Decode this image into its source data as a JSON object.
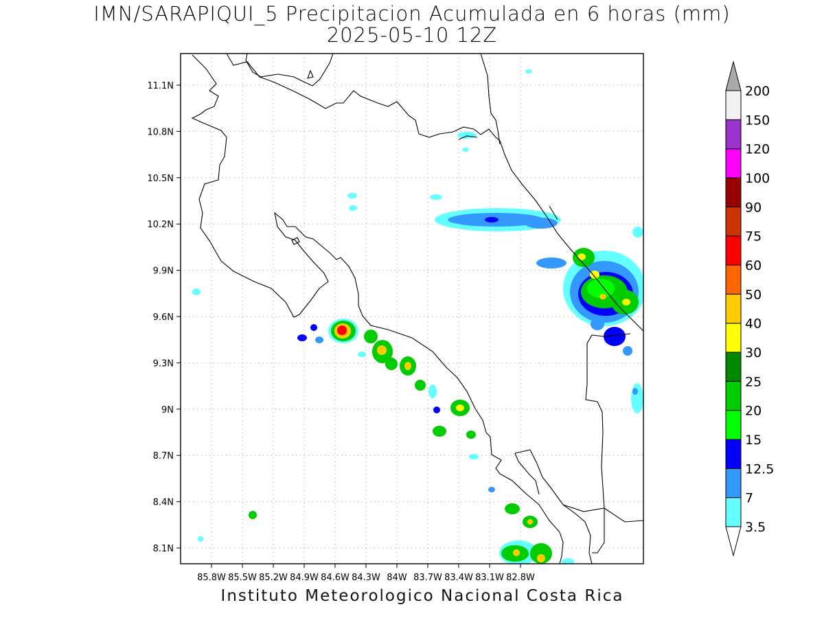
{
  "title": {
    "line1": "IMN/SARAPIQUI_5 Precipitacion Acumulada en 6 horas (mm)",
    "line2": "2025-05-10 12Z"
  },
  "footer": "Instituto Meteorologico Nacional Costa Rica",
  "map": {
    "lon_range": [
      -86.0,
      -83.0
    ],
    "lat_range": [
      8.0,
      11.3
    ],
    "lon_labels": [
      "85.8W",
      "85.5W",
      "85.2W",
      "84.9W",
      "84.6W",
      "84.3W",
      "84W",
      "83.7W",
      "83.4W",
      "83.1W",
      "82.8W"
    ],
    "lat_labels": [
      "11.1N",
      "10.8N",
      "10.5N",
      "10.2N",
      "9.9N",
      "9.6N",
      "9.3N",
      "9N",
      "8.7N",
      "8.4N",
      "8.1N"
    ]
  },
  "colorbar": {
    "levels": [
      "3.5",
      "7",
      "12.5",
      "15",
      "20",
      "25",
      "30",
      "40",
      "50",
      "60",
      "75",
      "90",
      "100",
      "120",
      "150",
      "200"
    ],
    "colors": [
      "#66ffff",
      "#3399ff",
      "#0000ff",
      "#00ff00",
      "#00cc00",
      "#008800",
      "#ffff00",
      "#ffcc00",
      "#ff6600",
      "#ff0000",
      "#cc3300",
      "#990000",
      "#ff00ff",
      "#9933cc",
      "#f2f2f2",
      "#aaaaaa"
    ]
  }
}
